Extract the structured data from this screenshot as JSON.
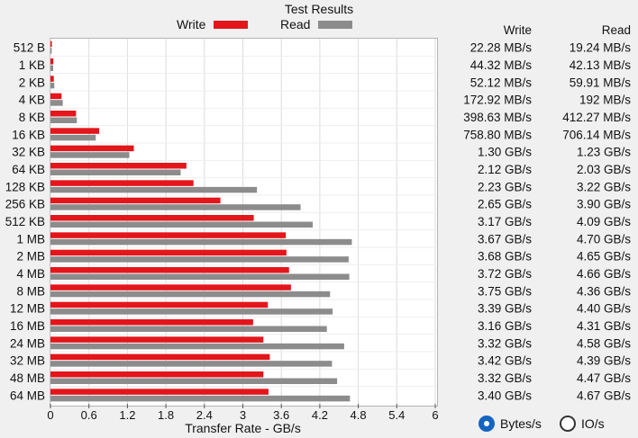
{
  "title": "Test Results",
  "legend": {
    "write_label": "Write",
    "read_label": "Read"
  },
  "colors": {
    "write": "#e3161b",
    "read": "#8c8c8c",
    "accent": "#1565c0"
  },
  "table": {
    "write_header": "Write",
    "read_header": "Read"
  },
  "radio": {
    "bytes_label": "Bytes/s",
    "io_label": "IO/s",
    "selected": "Bytes/s"
  },
  "chart_data": {
    "type": "bar",
    "orientation": "horizontal",
    "xlabel": "Transfer Rate - GB/s",
    "xlim": [
      0,
      6
    ],
    "xticks": [
      "0",
      "0.6",
      "1.2",
      "1.8",
      "2.4",
      "3",
      "3.6",
      "4.2",
      "4.8",
      "5.4",
      "6"
    ],
    "grid": true,
    "legend_position": "top-center",
    "categories": [
      "512 B",
      "1 KB",
      "2 KB",
      "4 KB",
      "8 KB",
      "16 KB",
      "32 KB",
      "64 KB",
      "128 KB",
      "256 KB",
      "512 KB",
      "1 MB",
      "2 MB",
      "4 MB",
      "8 MB",
      "12 MB",
      "16 MB",
      "24 MB",
      "32 MB",
      "48 MB",
      "64 MB"
    ],
    "series": [
      {
        "name": "Write",
        "values": [
          0.02228,
          0.04432,
          0.05212,
          0.17292,
          0.39863,
          0.7588,
          1.3,
          2.12,
          2.23,
          2.65,
          3.17,
          3.67,
          3.68,
          3.72,
          3.75,
          3.39,
          3.16,
          3.32,
          3.42,
          3.32,
          3.4
        ],
        "labels": [
          "22.28 MB/s",
          "44.32 MB/s",
          "52.12 MB/s",
          "172.92 MB/s",
          "398.63 MB/s",
          "758.80 MB/s",
          "1.30 GB/s",
          "2.12 GB/s",
          "2.23 GB/s",
          "2.65 GB/s",
          "3.17 GB/s",
          "3.67 GB/s",
          "3.68 GB/s",
          "3.72 GB/s",
          "3.75 GB/s",
          "3.39 GB/s",
          "3.16 GB/s",
          "3.32 GB/s",
          "3.42 GB/s",
          "3.32 GB/s",
          "3.40 GB/s"
        ]
      },
      {
        "name": "Read",
        "values": [
          0.01924,
          0.04213,
          0.05991,
          0.192,
          0.41227,
          0.70614,
          1.23,
          2.03,
          3.22,
          3.9,
          4.09,
          4.7,
          4.65,
          4.66,
          4.36,
          4.4,
          4.31,
          4.58,
          4.39,
          4.47,
          4.67
        ],
        "labels": [
          "19.24 MB/s",
          "42.13 MB/s",
          "59.91 MB/s",
          "192 MB/s",
          "412.27 MB/s",
          "706.14 MB/s",
          "1.23 GB/s",
          "2.03 GB/s",
          "3.22 GB/s",
          "3.90 GB/s",
          "4.09 GB/s",
          "4.70 GB/s",
          "4.65 GB/s",
          "4.66 GB/s",
          "4.36 GB/s",
          "4.40 GB/s",
          "4.31 GB/s",
          "4.58 GB/s",
          "4.39 GB/s",
          "4.47 GB/s",
          "4.67 GB/s"
        ]
      }
    ]
  }
}
